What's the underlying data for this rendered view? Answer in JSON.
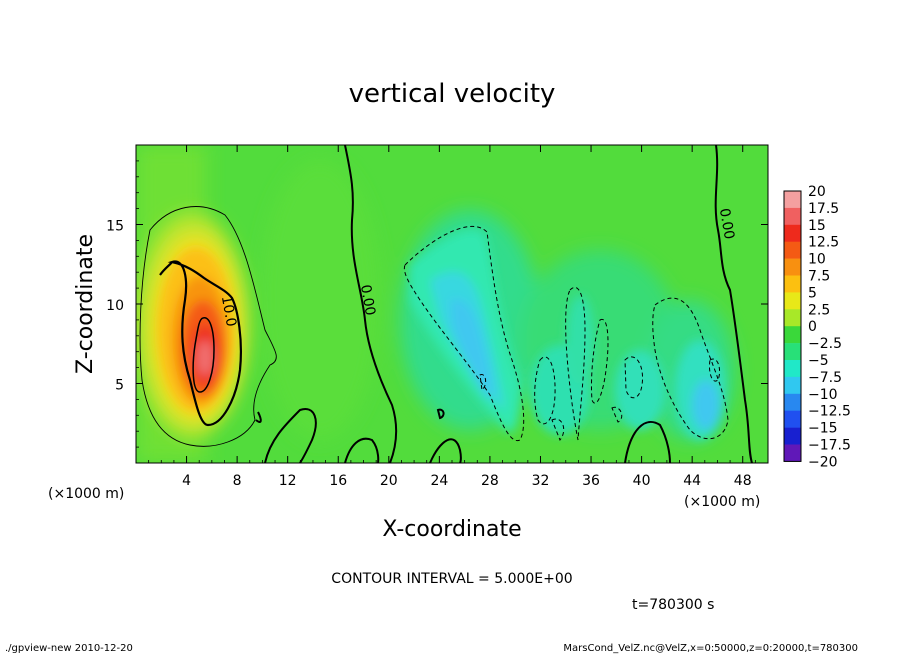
{
  "chart_data": {
    "type": "heatmap",
    "title": "vertical velocity",
    "xlabel": "X-coordinate",
    "ylabel": "Z-coordinate",
    "x_unit_left": "(×1000 m)",
    "x_unit_right": "(×1000 m)",
    "xlim": [
      0,
      50
    ],
    "ylim": [
      0,
      20
    ],
    "x_ticks": [
      4,
      8,
      12,
      16,
      20,
      24,
      28,
      32,
      36,
      40,
      44,
      48
    ],
    "y_ticks": [
      5,
      10,
      15
    ],
    "contour_labels": [
      {
        "text": "10.0",
        "x": 7.0,
        "y": 9.5
      },
      {
        "text": "0.00",
        "x": 18.0,
        "y": 10.2
      },
      {
        "text": "0.00",
        "x": 46.4,
        "y": 15.0
      }
    ],
    "colorbar": {
      "labels": [
        "20",
        "17.5",
        "15",
        "12.5",
        "10",
        "7.5",
        "5",
        "2.5",
        "0",
        "−2.5",
        "−5",
        "−7.5",
        "−10",
        "−12.5",
        "−15",
        "−17.5",
        "−20"
      ],
      "colors": [
        "#f4a0a0",
        "#f06060",
        "#ee2a1c",
        "#f45a14",
        "#f89010",
        "#fcc010",
        "#e8e818",
        "#a8e828",
        "#3ad83a",
        "#28e078",
        "#20e8c8",
        "#30c8f0",
        "#2888f0",
        "#2050f0",
        "#1820d0",
        "#1010a0",
        "#6018b8"
      ]
    },
    "contour_interval": "CONTOUR INTERVAL = 5.000E+00",
    "time": "t=780300 s"
  },
  "footer": {
    "left": "./gpview-new  2010-12-20",
    "right": "MarsCond_VelZ.nc@VelZ,x=0:50000,z=0:20000,t=780300"
  }
}
